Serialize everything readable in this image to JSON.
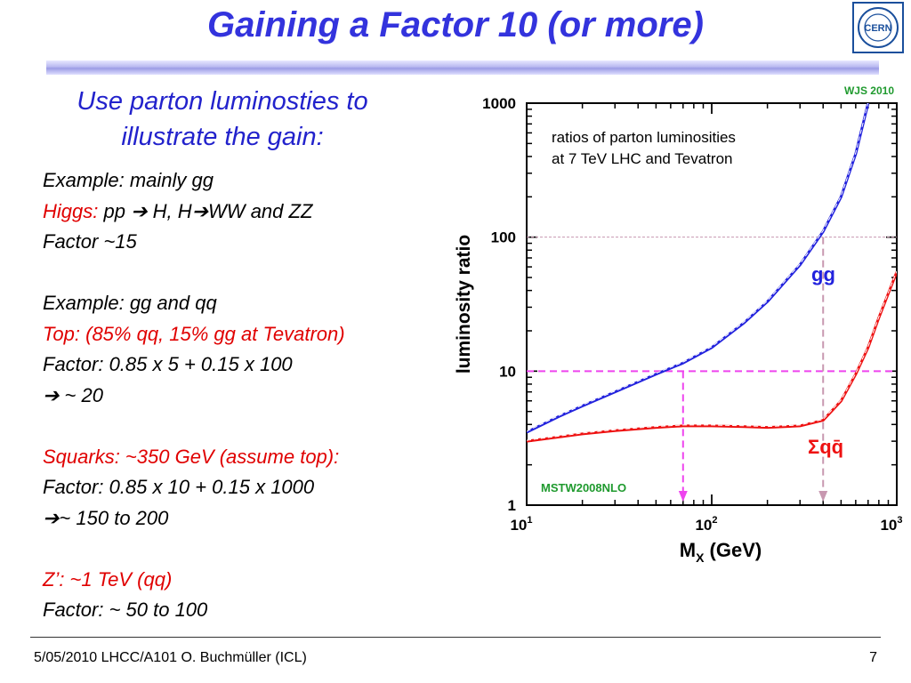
{
  "slide": {
    "title": "Gaining a Factor 10 (or more)",
    "logo_text": "CERN",
    "subtitle_line1": "Use parton luminosties to",
    "subtitle_line2": "illustrate the gain:",
    "lines": [
      {
        "segments": [
          {
            "text": "Example: mainly gg",
            "color": "black"
          }
        ]
      },
      {
        "segments": [
          {
            "text": "Higgs: ",
            "color": "red"
          },
          {
            "text": "pp ➔ H,  H➔WW and ZZ",
            "color": "black"
          }
        ]
      },
      {
        "segments": [
          {
            "text": "Factor ~15",
            "color": "black"
          }
        ]
      },
      {
        "segments": [
          {
            "text": "",
            "color": "black"
          }
        ]
      },
      {
        "segments": [
          {
            "text": "Example: gg and qq",
            "color": "black"
          }
        ]
      },
      {
        "segments": [
          {
            "text": "Top: (85% qq, 15% gg at Tevatron)",
            "color": "red"
          }
        ]
      },
      {
        "segments": [
          {
            "text": "Factor: 0.85 x 5 + 0.15  x 100",
            "color": "black"
          }
        ]
      },
      {
        "segments": [
          {
            "text": "➔ ~ 20",
            "color": "black"
          }
        ]
      },
      {
        "segments": [
          {
            "text": "",
            "color": "black"
          }
        ]
      },
      {
        "segments": [
          {
            "text": "Squarks: ~350 GeV (assume top):",
            "color": "red"
          }
        ]
      },
      {
        "segments": [
          {
            "text": "Factor: 0.85 x 10 + 0.15 x 1000",
            "color": "black"
          }
        ]
      },
      {
        "segments": [
          {
            "text": "➔~ 150 to 200",
            "color": "black"
          }
        ]
      },
      {
        "segments": [
          {
            "text": "",
            "color": "black"
          }
        ]
      },
      {
        "segments": [
          {
            "text": "Z’: ~1 TeV (qq)",
            "color": "red"
          }
        ]
      },
      {
        "segments": [
          {
            "text": "Factor:  ~ 50 to 100",
            "color": "black"
          }
        ]
      }
    ],
    "footer_left": "5/05/2010 LHCC/A101 O. Buchmüller (ICL)",
    "page_number": "7",
    "colors": {
      "title": "#3333dd",
      "red": "#e00000",
      "gg_curve": "#2222dd",
      "qq_curve": "#ee1111",
      "marker": "#ee44ee"
    }
  },
  "chart_data": {
    "type": "line",
    "title_line1": "ratios of parton luminosities",
    "title_line2": "at 7 TeV LHC and Tevatron",
    "corner_label": "WJS 2010",
    "pdf_label": "MSTW2008NLO",
    "xlabel": "M",
    "xlabel_sub": "X",
    "xlabel_unit": " (GeV)",
    "ylabel": "luminosity ratio",
    "x_scale": "log",
    "y_scale": "log",
    "xlim": [
      10,
      1000
    ],
    "ylim": [
      1,
      1000
    ],
    "x_ticks": [
      {
        "base": "10",
        "exp": "1"
      },
      {
        "base": "10",
        "exp": "2"
      },
      {
        "base": "10",
        "exp": "3"
      }
    ],
    "y_ticks": [
      "1",
      "10",
      "100",
      "1000"
    ],
    "series": [
      {
        "name": "gg",
        "color": "#2222dd",
        "x": [
          10,
          15,
          20,
          30,
          40,
          50,
          70,
          100,
          150,
          200,
          300,
          400,
          500,
          600,
          700
        ],
        "y": [
          3.5,
          4.6,
          5.5,
          7.0,
          8.3,
          9.5,
          11.5,
          15,
          23,
          33,
          62,
          110,
          200,
          420,
          1000
        ]
      },
      {
        "name": "Σqq",
        "display": "Σqq̄",
        "color": "#ee1111",
        "x": [
          10,
          20,
          30,
          50,
          70,
          100,
          150,
          200,
          300,
          400,
          500,
          600,
          700,
          800,
          900,
          1000
        ],
        "y": [
          3.0,
          3.4,
          3.6,
          3.8,
          3.9,
          3.9,
          3.85,
          3.8,
          3.9,
          4.3,
          6.0,
          9.5,
          15,
          25,
          38,
          55
        ]
      }
    ],
    "annotations": [
      {
        "x": 70,
        "y": 10,
        "color": "#ee44ee"
      },
      {
        "x": 400,
        "y": 100,
        "color": "#c898b0"
      }
    ]
  }
}
